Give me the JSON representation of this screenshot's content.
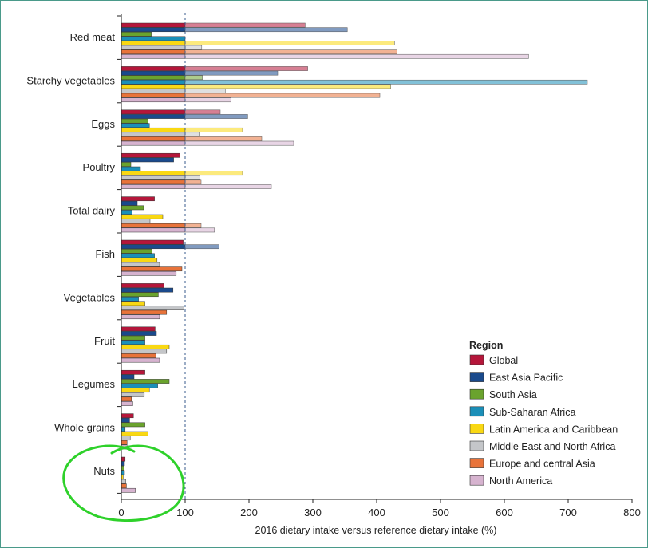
{
  "chart_data": {
    "type": "bar",
    "orientation": "horizontal",
    "categories": [
      "Red meat",
      "Starchy vegetables",
      "Eggs",
      "Poultry",
      "Total dairy",
      "Fish",
      "Vegetables",
      "Fruit",
      "Legumes",
      "Whole grains",
      "Nuts"
    ],
    "xlabel": "2016 dietary intake versus reference dietary intake (%)",
    "xlim": [
      0,
      800
    ],
    "xticks": [
      0,
      100,
      200,
      300,
      400,
      500,
      600,
      700,
      800
    ],
    "reference_line": 100,
    "legend_title": "Region",
    "legend_position": "bottom-right",
    "series": [
      {
        "name": "Global",
        "color": "#b5163a",
        "values": [
          288,
          292,
          155,
          92,
          52,
          97,
          67,
          53,
          37,
          19,
          6
        ]
      },
      {
        "name": "East Asia Pacific",
        "color": "#1a4a8c",
        "values": [
          354,
          245,
          198,
          82,
          25,
          153,
          81,
          55,
          20,
          13,
          5
        ]
      },
      {
        "name": "South Asia",
        "color": "#6aa32d",
        "values": [
          47,
          127,
          42,
          15,
          35,
          48,
          58,
          37,
          75,
          37,
          4
        ]
      },
      {
        "name": "Sub-Saharan Africa",
        "color": "#1b8fb8",
        "values": [
          100,
          730,
          44,
          30,
          17,
          52,
          27,
          37,
          57,
          6,
          5
        ]
      },
      {
        "name": "Latin America and Caribbean",
        "color": "#f9d813",
        "values": [
          428,
          422,
          190,
          190,
          65,
          56,
          37,
          75,
          44,
          42,
          3
        ]
      },
      {
        "name": "Middle East and North Africa",
        "color": "#c4c6c9",
        "values": [
          126,
          163,
          122,
          123,
          45,
          60,
          98,
          71,
          36,
          14,
          7
        ]
      },
      {
        "name": "Europe and central  Asia",
        "color": "#e8733a",
        "values": [
          432,
          405,
          220,
          125,
          125,
          95,
          71,
          54,
          16,
          9,
          8
        ]
      },
      {
        "name": "North America",
        "color": "#d6b3cf",
        "values": [
          638,
          172,
          270,
          235,
          146,
          86,
          60,
          60,
          18,
          9,
          22
        ]
      }
    ]
  },
  "annotation": {
    "type": "hand-drawn circle",
    "color": "#2ed12a",
    "target": "Nuts"
  }
}
